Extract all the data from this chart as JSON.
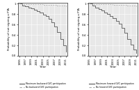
{
  "years": [
    1995,
    1996,
    1997,
    1998,
    1999,
    2000,
    2001,
    2002,
    2003,
    2004,
    2005,
    2006,
    2007,
    2008,
    2009,
    2010,
    2011
  ],
  "left_max_survival": [
    1.0,
    0.97,
    0.945,
    0.925,
    0.905,
    0.882,
    0.857,
    0.83,
    0.797,
    0.757,
    0.71,
    0.648,
    0.565,
    0.455,
    0.325,
    0.195,
    0.085
  ],
  "left_min_survival": [
    1.0,
    0.998,
    0.996,
    0.994,
    0.992,
    0.99,
    0.988,
    0.986,
    0.984,
    0.982,
    0.98,
    0.977,
    0.974,
    0.97,
    0.965,
    0.96,
    0.954
  ],
  "right_max_survival": [
    1.0,
    0.96,
    0.925,
    0.895,
    0.867,
    0.837,
    0.803,
    0.765,
    0.722,
    0.673,
    0.61,
    0.535,
    0.44,
    0.325,
    0.215,
    0.125,
    0.06
  ],
  "right_min_survival": [
    1.0,
    0.998,
    0.996,
    0.994,
    0.992,
    0.99,
    0.988,
    0.986,
    0.984,
    0.982,
    0.98,
    0.977,
    0.974,
    0.97,
    0.965,
    0.96,
    0.954
  ],
  "xlabel": "Year",
  "ylabel": "Probability of not signing a FTA",
  "left_legend": [
    "Maximum backward GVC participation",
    "No backward GVC participation"
  ],
  "right_legend": [
    "Maximum forward GVC participation",
    "No forward GVC participation"
  ],
  "line_color_max": "#555555",
  "line_color_min": "#aaaaaa",
  "bg_color": "#e8e8e8",
  "ylim": [
    0.0,
    1.02
  ],
  "yticks": [
    0.0,
    0.2,
    0.4,
    0.6,
    0.8,
    1.0
  ],
  "ytick_labels": [
    "0.0",
    "0.2",
    "0.4",
    "0.6",
    "0.8",
    "1"
  ],
  "xticks": [
    1995,
    1997,
    1999,
    2001,
    2003,
    2005,
    2007,
    2009,
    2011
  ],
  "figsize": [
    2.0,
    1.29
  ],
  "dpi": 100
}
